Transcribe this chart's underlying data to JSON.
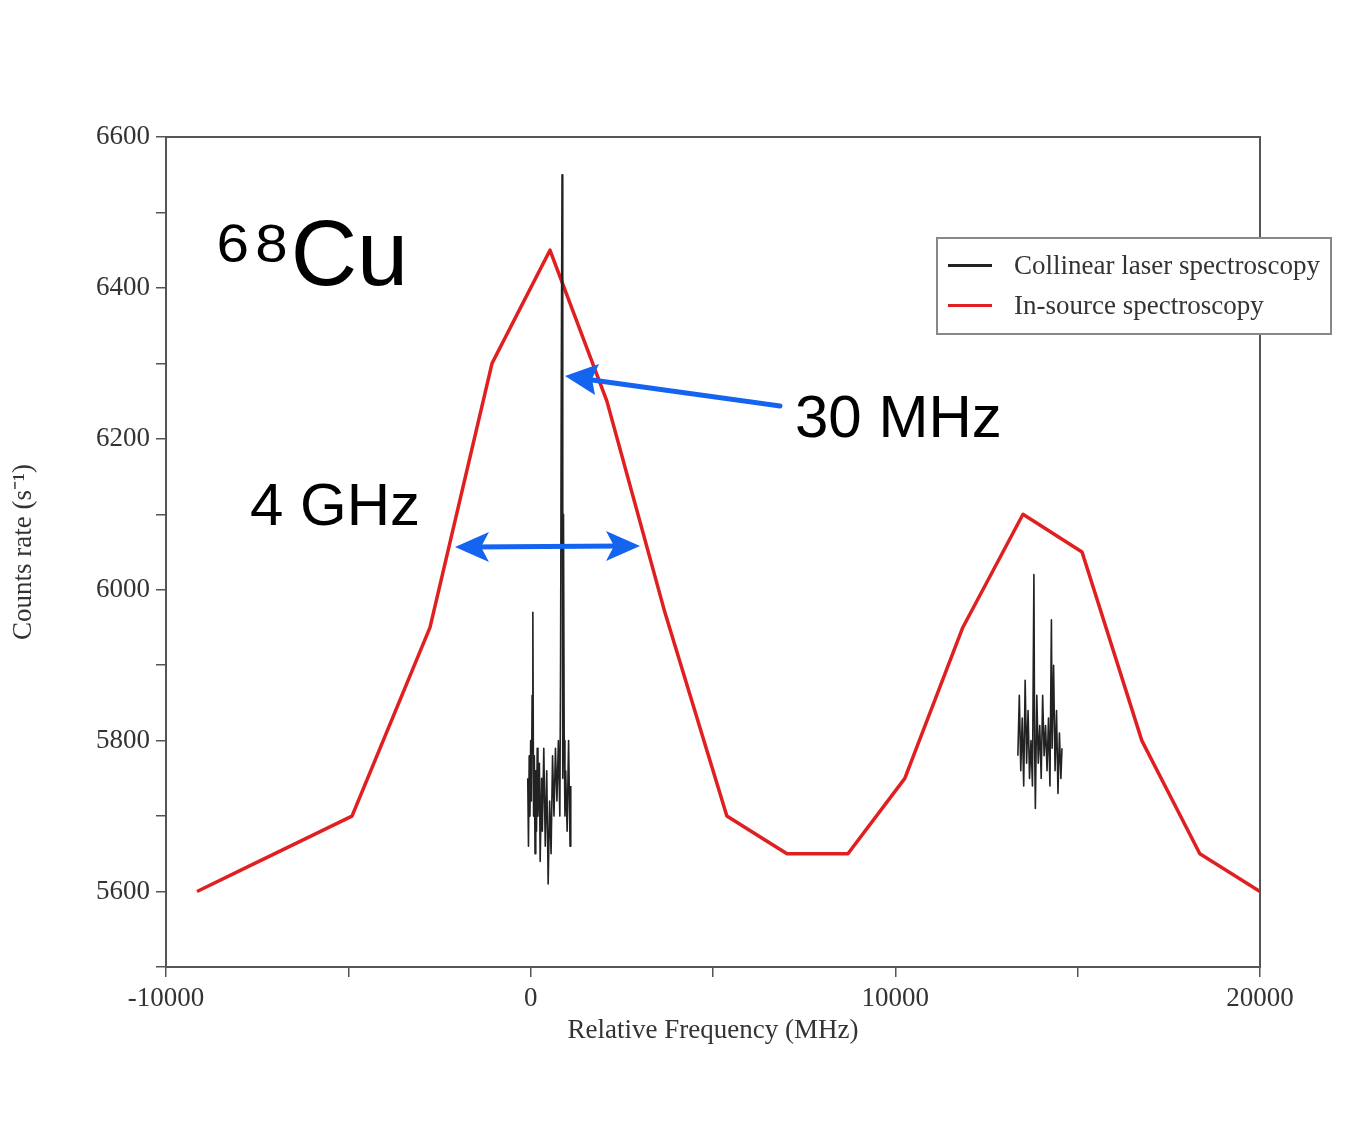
{
  "chart_data": {
    "type": "line",
    "xlabel": "Relative Frequency (MHz)",
    "ylabel": "Counts rate (s⁻¹)",
    "xlim": [
      -10000,
      20000
    ],
    "xticks": [
      -10000,
      {
        "value": -5000,
        "label": null
      },
      0,
      {
        "value": 5000,
        "label": null
      },
      10000,
      {
        "value": 15000,
        "label": null
      },
      20000
    ],
    "ylim": [
      5500,
      6600
    ],
    "yticks": [
      {
        "value": 5500,
        "label": null
      },
      5600,
      {
        "value": 5700,
        "label": null
      },
      5800,
      {
        "value": 5900,
        "label": null
      },
      6000,
      {
        "value": 6100,
        "label": null
      },
      6200,
      {
        "value": 6300,
        "label": null
      },
      6400,
      {
        "value": 6500,
        "label": null
      },
      6600
    ],
    "grid": false,
    "legend": "top right",
    "marker": "none",
    "line_style": "solid",
    "series": [
      {
        "name": "Collinear laser spectroscopy",
        "color": "#222222",
        "x": [
          -80,
          -60,
          -40,
          -20,
          0,
          20,
          40,
          60,
          80,
          100,
          120,
          140,
          160,
          180,
          200,
          240,
          260,
          300,
          320,
          360,
          400,
          440,
          480,
          520,
          560,
          600,
          640,
          680,
          720,
          760,
          800,
          820,
          840,
          860,
          880,
          900,
          920,
          940,
          960,
          1000,
          1040,
          1080,
          1100,
          7000,
          13360,
          13400,
          13440,
          13480,
          13520,
          13560,
          13600,
          13640,
          13680,
          13720,
          13760,
          13800,
          13820,
          13840,
          13880,
          13920,
          13960,
          14000,
          14040,
          14080,
          14120,
          14160,
          14200,
          14240,
          14280,
          14300,
          14340,
          14380,
          14420,
          14460,
          14500,
          14540,
          14570
        ],
        "values": [
          5750,
          5660,
          5780,
          5700,
          5800,
          5720,
          5860,
          5970,
          5700,
          5780,
          5650,
          5760,
          5680,
          5790,
          5700,
          5770,
          5640,
          5750,
          5680,
          5790,
          5660,
          5760,
          5610,
          5720,
          5650,
          5780,
          5700,
          5790,
          5720,
          5800,
          5700,
          5900,
          6280,
          6550,
          5750,
          6100,
          5800,
          5700,
          5760,
          5680,
          5800,
          5660,
          5740,
          null,
          5780,
          5860,
          5760,
          5830,
          5740,
          5880,
          5770,
          5840,
          5750,
          5800,
          5740,
          6020,
          5790,
          5710,
          5860,
          5770,
          5820,
          5750,
          5860,
          5780,
          5820,
          5760,
          5830,
          5740,
          5960,
          5790,
          5900,
          5760,
          5840,
          5730,
          5810,
          5750,
          5790
        ]
      },
      {
        "name": "In-source spectroscopy",
        "color": "#e02020",
        "x": [
          -9150,
          -4900,
          -2760,
          -1060,
          530,
          2090,
          3680,
          5380,
          7030,
          8700,
          10260,
          11850,
          13500,
          15120,
          16760,
          18350,
          20000
        ],
        "values": [
          5600,
          5700,
          5950,
          6300,
          6450,
          6250,
          5970,
          5700,
          5650,
          5650,
          5750,
          5950,
          6100,
          6050,
          5800,
          5650,
          5600
        ]
      }
    ],
    "annotations": [
      "⁶⁸Cu",
      "30 MHz",
      "4 GHz"
    ]
  }
}
